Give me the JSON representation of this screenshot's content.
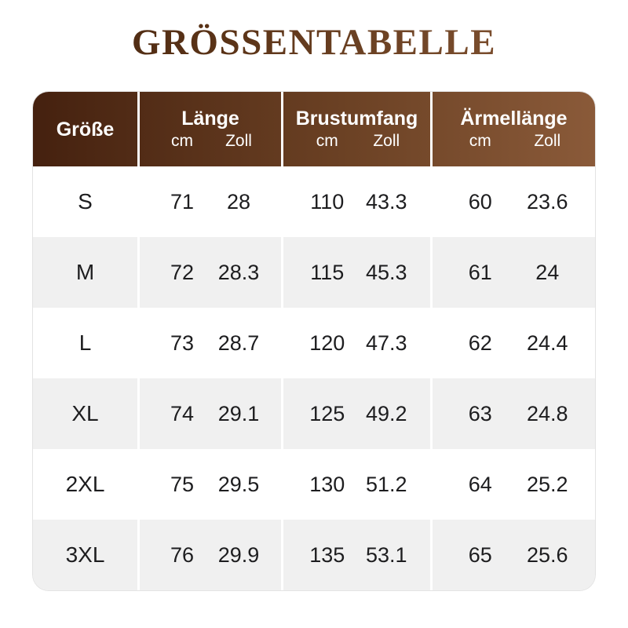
{
  "title": "GRÖSSENTABELLE",
  "colors": {
    "title_gradient_start": "#46240f",
    "title_gradient_end": "#8a5a38",
    "header_gradient_start": "#45210f",
    "header_gradient_end": "#8a5a39",
    "header_text": "#ffffff",
    "row_white": "#ffffff",
    "row_gray": "#f0f0f0",
    "body_text": "#1d1d1f"
  },
  "table": {
    "columns": [
      {
        "label": "Größe"
      },
      {
        "label": "Länge",
        "units": [
          "cm",
          "Zoll"
        ]
      },
      {
        "label": "Brustumfang",
        "units": [
          "cm",
          "Zoll"
        ]
      },
      {
        "label": "Ärmellänge",
        "units": [
          "cm",
          "Zoll"
        ]
      }
    ],
    "rows": [
      {
        "size": "S",
        "values": [
          "71",
          "28",
          "110",
          "43.3",
          "60",
          "23.6"
        ]
      },
      {
        "size": "M",
        "values": [
          "72",
          "28.3",
          "115",
          "45.3",
          "61",
          "24"
        ]
      },
      {
        "size": "L",
        "values": [
          "73",
          "28.7",
          "120",
          "47.3",
          "62",
          "24.4"
        ]
      },
      {
        "size": "XL",
        "values": [
          "74",
          "29.1",
          "125",
          "49.2",
          "63",
          "24.8"
        ]
      },
      {
        "size": "2XL",
        "values": [
          "75",
          "29.5",
          "130",
          "51.2",
          "64",
          "25.2"
        ]
      },
      {
        "size": "3XL",
        "values": [
          "76",
          "29.9",
          "135",
          "53.1",
          "65",
          "25.6"
        ]
      }
    ]
  },
  "chart_data": {
    "type": "table",
    "title": "GRÖSSENTABELLE",
    "columns": [
      "Größe",
      "Länge cm",
      "Länge Zoll",
      "Brustumfang cm",
      "Brustumfang Zoll",
      "Ärmellänge cm",
      "Ärmellänge Zoll"
    ],
    "rows": [
      [
        "S",
        71,
        28,
        110,
        43.3,
        60,
        23.6
      ],
      [
        "M",
        72,
        28.3,
        115,
        45.3,
        61,
        24
      ],
      [
        "L",
        73,
        28.7,
        120,
        47.3,
        62,
        24.4
      ],
      [
        "XL",
        74,
        29.1,
        125,
        49.2,
        63,
        24.8
      ],
      [
        "2XL",
        75,
        29.5,
        130,
        51.2,
        64,
        25.2
      ],
      [
        "3XL",
        76,
        29.9,
        135,
        53.1,
        65,
        25.6
      ]
    ]
  }
}
